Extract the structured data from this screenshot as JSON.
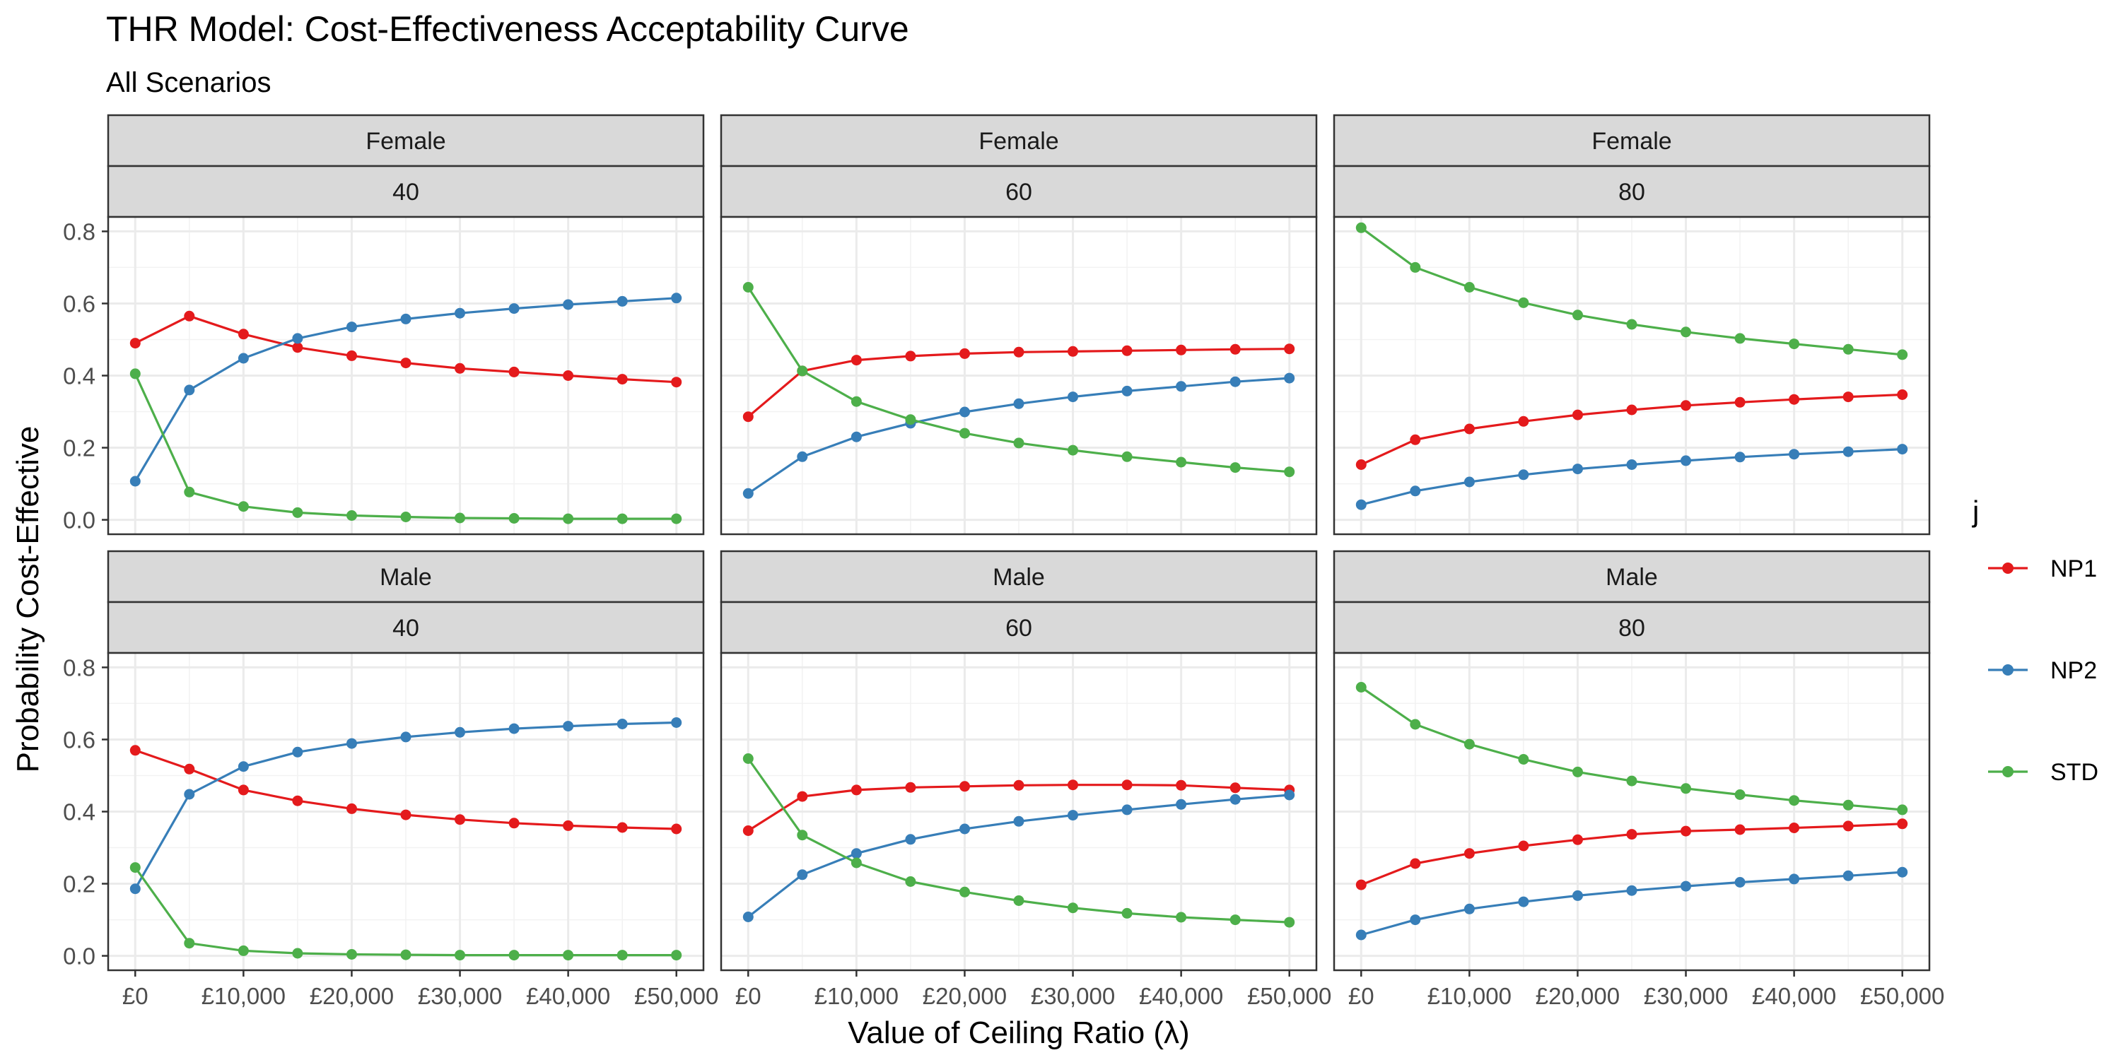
{
  "chart_data": {
    "type": "line",
    "title": "THR Model: Cost-Effectiveness Acceptability Curve",
    "subtitle": "All Scenarios",
    "xlabel": "Value of Ceiling Ratio (λ)",
    "ylabel": "Probability Cost-Effective",
    "legend_title": "j",
    "legend_position": "right",
    "ylim": [
      -0.04,
      0.84
    ],
    "xlim": [
      -2500,
      52500
    ],
    "x": [
      0,
      5000,
      10000,
      15000,
      20000,
      25000,
      30000,
      35000,
      40000,
      45000,
      50000
    ],
    "x_ticks": [
      0,
      10000,
      20000,
      30000,
      40000,
      50000
    ],
    "x_tick_labels": [
      "£0",
      "£10,000",
      "£20,000",
      "£30,000",
      "£40,000",
      "£50,000"
    ],
    "y_ticks": [
      0,
      0.2,
      0.4,
      0.6,
      0.8
    ],
    "y_tick_labels": [
      "0.0",
      "0.2",
      "0.4",
      "0.6",
      "0.8"
    ],
    "series_meta": [
      {
        "name": "NP1",
        "color": "#e41a1c"
      },
      {
        "name": "NP2",
        "color": "#377eb8"
      },
      {
        "name": "STD",
        "color": "#4daf4a"
      }
    ],
    "panels": [
      {
        "sex": "Female",
        "age": "40",
        "series": [
          {
            "name": "NP1",
            "values": [
              0.49,
              0.565,
              0.515,
              0.478,
              0.455,
              0.435,
              0.42,
              0.41,
              0.4,
              0.39,
              0.382
            ]
          },
          {
            "name": "NP2",
            "values": [
              0.107,
              0.36,
              0.448,
              0.503,
              0.535,
              0.557,
              0.573,
              0.586,
              0.597,
              0.606,
              0.615
            ]
          },
          {
            "name": "STD",
            "values": [
              0.405,
              0.077,
              0.037,
              0.02,
              0.012,
              0.008,
              0.005,
              0.004,
              0.003,
              0.003,
              0.003
            ]
          }
        ]
      },
      {
        "sex": "Female",
        "age": "60",
        "series": [
          {
            "name": "NP1",
            "values": [
              0.286,
              0.413,
              0.443,
              0.454,
              0.461,
              0.465,
              0.467,
              0.469,
              0.471,
              0.473,
              0.474
            ]
          },
          {
            "name": "NP2",
            "values": [
              0.073,
              0.175,
              0.23,
              0.268,
              0.299,
              0.322,
              0.341,
              0.357,
              0.37,
              0.383,
              0.393
            ]
          },
          {
            "name": "STD",
            "values": [
              0.645,
              0.413,
              0.328,
              0.278,
              0.24,
              0.213,
              0.193,
              0.175,
              0.16,
              0.145,
              0.133
            ]
          }
        ]
      },
      {
        "sex": "Female",
        "age": "80",
        "series": [
          {
            "name": "NP1",
            "values": [
              0.153,
              0.222,
              0.252,
              0.273,
              0.291,
              0.305,
              0.317,
              0.326,
              0.334,
              0.341,
              0.347
            ]
          },
          {
            "name": "NP2",
            "values": [
              0.042,
              0.08,
              0.105,
              0.125,
              0.141,
              0.153,
              0.164,
              0.174,
              0.182,
              0.189,
              0.196
            ]
          },
          {
            "name": "STD",
            "values": [
              0.81,
              0.7,
              0.645,
              0.602,
              0.568,
              0.542,
              0.521,
              0.503,
              0.488,
              0.473,
              0.458
            ]
          }
        ]
      },
      {
        "sex": "Male",
        "age": "40",
        "series": [
          {
            "name": "NP1",
            "values": [
              0.57,
              0.518,
              0.46,
              0.43,
              0.408,
              0.391,
              0.378,
              0.368,
              0.361,
              0.356,
              0.352
            ]
          },
          {
            "name": "NP2",
            "values": [
              0.186,
              0.448,
              0.525,
              0.565,
              0.589,
              0.607,
              0.62,
              0.63,
              0.637,
              0.643,
              0.647
            ]
          },
          {
            "name": "STD",
            "values": [
              0.245,
              0.035,
              0.014,
              0.007,
              0.004,
              0.003,
              0.002,
              0.002,
              0.002,
              0.002,
              0.002
            ]
          }
        ]
      },
      {
        "sex": "Male",
        "age": "60",
        "series": [
          {
            "name": "NP1",
            "values": [
              0.347,
              0.442,
              0.46,
              0.467,
              0.47,
              0.473,
              0.474,
              0.474,
              0.473,
              0.466,
              0.46
            ]
          },
          {
            "name": "NP2",
            "values": [
              0.108,
              0.225,
              0.284,
              0.323,
              0.352,
              0.373,
              0.39,
              0.405,
              0.42,
              0.434,
              0.446
            ]
          },
          {
            "name": "STD",
            "values": [
              0.547,
              0.335,
              0.258,
              0.206,
              0.177,
              0.153,
              0.133,
              0.118,
              0.107,
              0.1,
              0.093
            ]
          }
        ]
      },
      {
        "sex": "Male",
        "age": "80",
        "series": [
          {
            "name": "NP1",
            "values": [
              0.197,
              0.256,
              0.284,
              0.305,
              0.322,
              0.337,
              0.346,
              0.35,
              0.355,
              0.36,
              0.366
            ]
          },
          {
            "name": "NP2",
            "values": [
              0.058,
              0.1,
              0.13,
              0.15,
              0.167,
              0.181,
              0.193,
              0.204,
              0.213,
              0.222,
              0.232
            ]
          },
          {
            "name": "STD",
            "values": [
              0.745,
              0.642,
              0.587,
              0.545,
              0.51,
              0.485,
              0.464,
              0.447,
              0.431,
              0.418,
              0.405
            ]
          }
        ]
      }
    ]
  }
}
